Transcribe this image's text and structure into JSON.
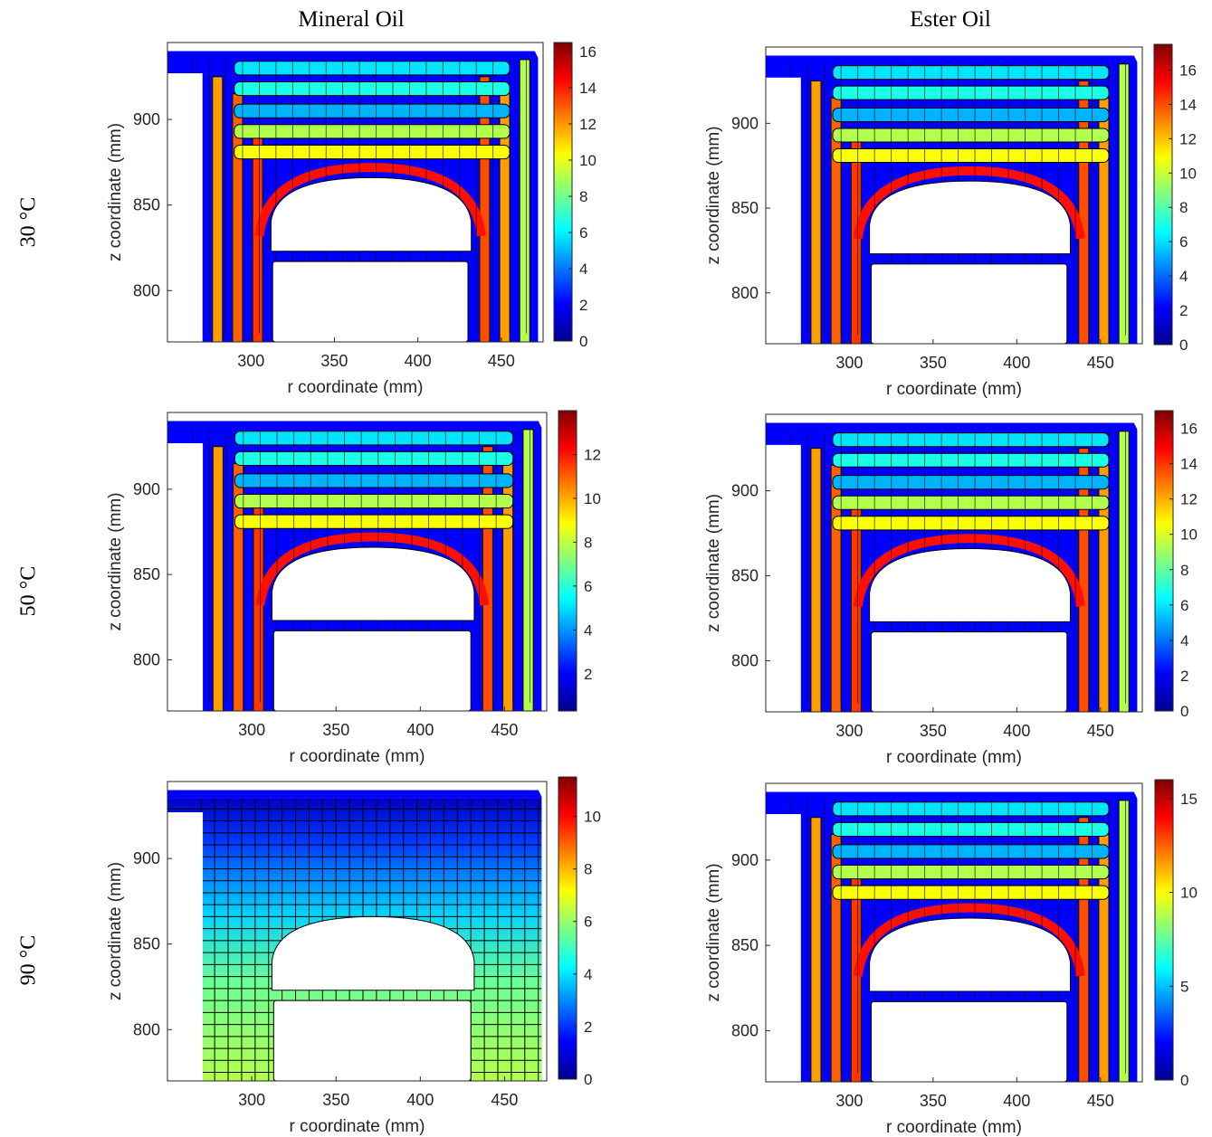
{
  "figure": {
    "column_titles": [
      "Mineral Oil",
      "Ester Oil"
    ],
    "row_labels": [
      "30 °C",
      "50 °C",
      "90 °C"
    ]
  },
  "colormap": [
    "#00008f",
    "#0000ff",
    "#0080ff",
    "#00ffff",
    "#80ff80",
    "#ffff00",
    "#ff8000",
    "#ff0000",
    "#800000"
  ],
  "chart_data": [
    {
      "type": "heatmap",
      "column": "Mineral Oil",
      "row": "30 °C",
      "xlabel": "r coordinate (mm)",
      "ylabel": "z coordinate (mm)",
      "xlim": [
        250,
        475
      ],
      "ylim": [
        770,
        945
      ],
      "xticks": [
        300,
        350,
        400,
        450
      ],
      "yticks": [
        800,
        850,
        900
      ],
      "colorbar": {
        "min": 0,
        "max": 16.5,
        "ticks": [
          0,
          2,
          4,
          6,
          8,
          10,
          12,
          14,
          16
        ]
      },
      "pattern": "layered"
    },
    {
      "type": "heatmap",
      "column": "Ester Oil",
      "row": "30 °C",
      "xlabel": "r coordinate (mm)",
      "ylabel": "z coordinate (mm)",
      "xlim": [
        250,
        475
      ],
      "ylim": [
        770,
        945
      ],
      "xticks": [
        300,
        350,
        400,
        450
      ],
      "yticks": [
        800,
        850,
        900
      ],
      "colorbar": {
        "min": 0,
        "max": 17.5,
        "ticks": [
          0,
          2,
          4,
          6,
          8,
          10,
          12,
          14,
          16
        ]
      },
      "pattern": "layered"
    },
    {
      "type": "heatmap",
      "column": "Mineral Oil",
      "row": "50 °C",
      "xlabel": "r coordinate (mm)",
      "ylabel": "z coordinate (mm)",
      "xlim": [
        250,
        475
      ],
      "ylim": [
        770,
        945
      ],
      "xticks": [
        300,
        350,
        400,
        450
      ],
      "yticks": [
        800,
        850,
        900
      ],
      "colorbar": {
        "min": 0.3,
        "max": 14,
        "ticks": [
          2,
          4,
          6,
          8,
          10,
          12
        ]
      },
      "pattern": "layered"
    },
    {
      "type": "heatmap",
      "column": "Ester Oil",
      "row": "50 °C",
      "xlabel": "r coordinate (mm)",
      "ylabel": "z coordinate (mm)",
      "xlim": [
        250,
        475
      ],
      "ylim": [
        770,
        945
      ],
      "xticks": [
        300,
        350,
        400,
        450
      ],
      "yticks": [
        800,
        850,
        900
      ],
      "colorbar": {
        "min": 0,
        "max": 17,
        "ticks": [
          0,
          2,
          4,
          6,
          8,
          10,
          12,
          14,
          16
        ]
      },
      "pattern": "layered"
    },
    {
      "type": "heatmap",
      "column": "Mineral Oil",
      "row": "90 °C",
      "xlabel": "r coordinate (mm)",
      "ylabel": "z coordinate (mm)",
      "xlim": [
        250,
        475
      ],
      "ylim": [
        770,
        945
      ],
      "xticks": [
        300,
        350,
        400,
        450
      ],
      "yticks": [
        800,
        850,
        900
      ],
      "colorbar": {
        "min": 0,
        "max": 11.5,
        "ticks": [
          0,
          2,
          4,
          6,
          8,
          10
        ]
      },
      "pattern": "smooth"
    },
    {
      "type": "heatmap",
      "column": "Ester Oil",
      "row": "90 °C",
      "xlabel": "r coordinate (mm)",
      "ylabel": "z coordinate (mm)",
      "xlim": [
        250,
        475
      ],
      "ylim": [
        770,
        945
      ],
      "xticks": [
        300,
        350,
        400,
        450
      ],
      "yticks": [
        800,
        850,
        900
      ],
      "colorbar": {
        "min": 0,
        "max": 16,
        "ticks": [
          0,
          5,
          10,
          15
        ]
      },
      "pattern": "layered"
    }
  ]
}
